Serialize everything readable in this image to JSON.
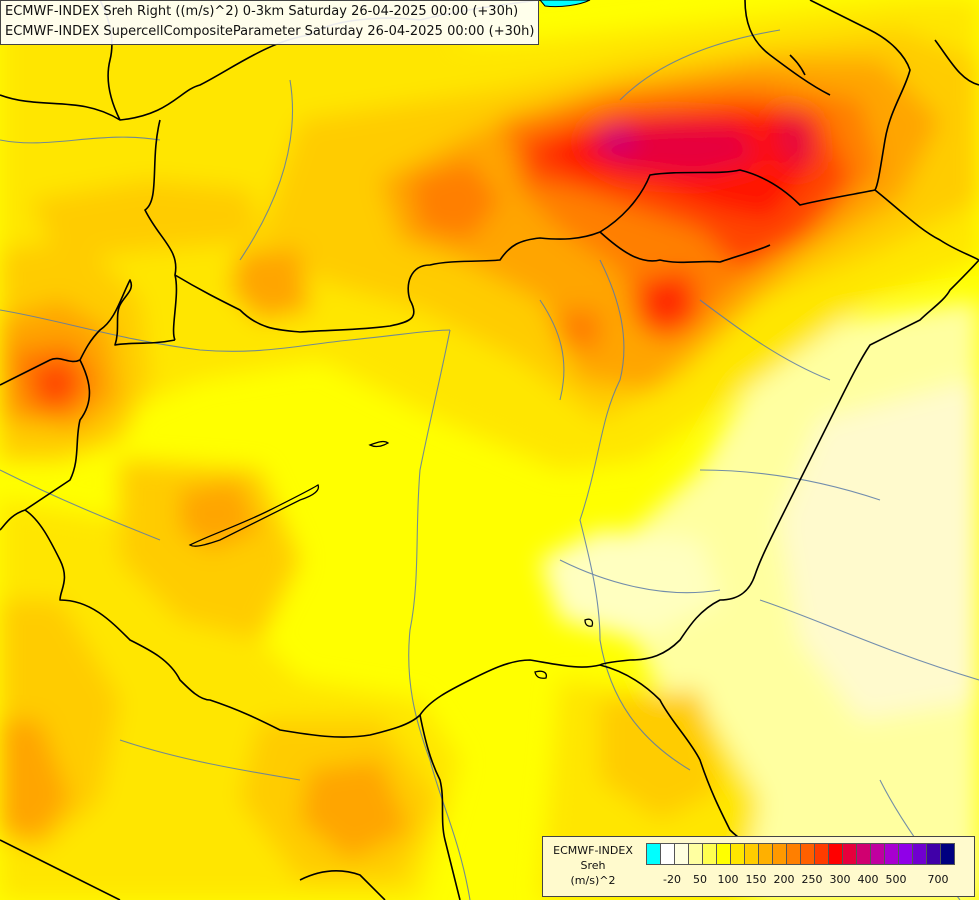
{
  "titles": {
    "line1": "ECMWF-INDEX Sreh Right ((m/s)^2) 0-3km Saturday 26-04-2025 00:00 (+30h)",
    "line2": "ECMWF-INDEX SupercellCompositeParameter Saturday 26-04-2025 00:00 (+30h)"
  },
  "legend": {
    "source": "ECMWF-INDEX",
    "variable": "Sreh",
    "unit": "(m/s)^2",
    "colors": [
      "#00ffff",
      "#ffffff",
      "#ffffe0",
      "#ffffa0",
      "#ffff50",
      "#ffff00",
      "#ffe600",
      "#ffcc00",
      "#ffb000",
      "#ff9900",
      "#ff7f00",
      "#ff6000",
      "#ff3c00",
      "#ff0000",
      "#e6003c",
      "#d00070",
      "#c000a0",
      "#a800d0",
      "#9000e8",
      "#7000d0",
      "#4000a8",
      "#000080"
    ],
    "tick_labels": [
      "-20",
      "50",
      "100",
      "150",
      "200",
      "250",
      "300",
      "400",
      "500",
      "700"
    ]
  },
  "map": {
    "palette": {
      "very_light": "#fffacd",
      "light": "#ffffa0",
      "yellow": "#ffff00",
      "gold": "#ffe600",
      "orange_light": "#ffcc00",
      "orange": "#ffa500",
      "orange_dark": "#ff7f00",
      "red_orange": "#ff4500",
      "red": "#ff1400",
      "crimson": "#e6003c",
      "magenta": "#c8007a",
      "border": "#000000",
      "river": "#5a7aa8"
    }
  }
}
